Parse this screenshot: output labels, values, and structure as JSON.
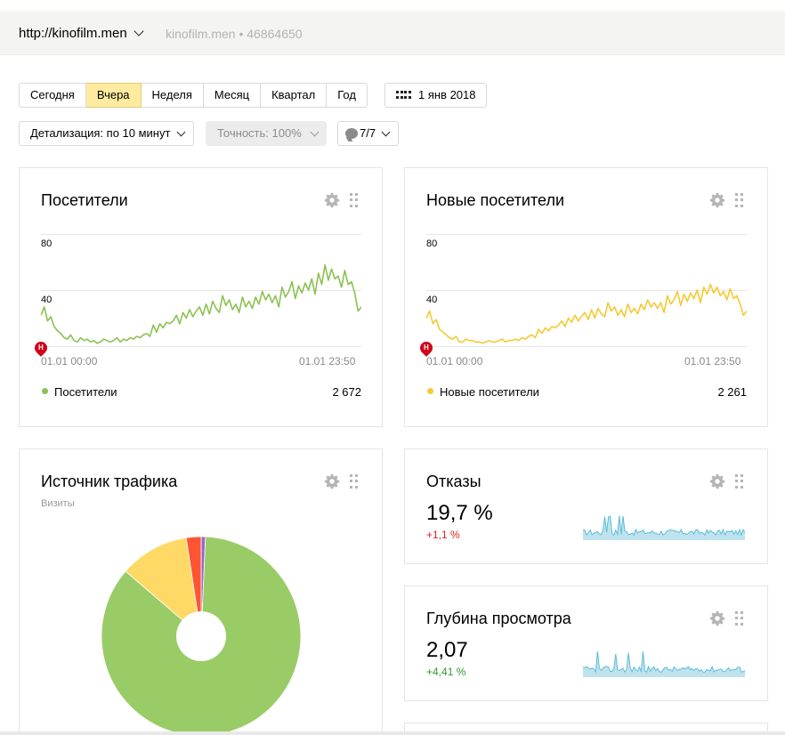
{
  "header": {
    "site_name": "http://kinofilm.men",
    "site_meta": "kinofilm.men • 46864650"
  },
  "period_tabs": [
    {
      "label": "Сегодня",
      "active": false
    },
    {
      "label": "Вчера",
      "active": true
    },
    {
      "label": "Неделя",
      "active": false
    },
    {
      "label": "Месяц",
      "active": false
    },
    {
      "label": "Квартал",
      "active": false
    },
    {
      "label": "Год",
      "active": false
    }
  ],
  "date_picker": {
    "label": "1 янв 2018",
    "icon": "calendar-icon"
  },
  "filters": {
    "detail": "Детализация: по 10 минут",
    "accuracy": "Точность: 100%",
    "segments": "7/7"
  },
  "colors": {
    "green": "#8cc152",
    "yellow": "#f5c933",
    "blue": "#5bbcd8",
    "red_delta": "#e0221d",
    "green_delta": "#2f9a2f",
    "pie_green": "#99cc66",
    "pie_yellow": "#ffd966",
    "pie_red": "#ff5533",
    "pie_purple": "#9966cc"
  },
  "visitors": {
    "title": "Посетители",
    "y_top": "80",
    "y_mid": "40",
    "start_time": "01.01 00:00",
    "end_time": "01.01 23:50",
    "legend_label": "Посетители",
    "legend_value": "2 672",
    "badge": "Н"
  },
  "new_visitors": {
    "title": "Новые посетители",
    "y_top": "80",
    "y_mid": "40",
    "start_time": "01.01 00:00",
    "end_time": "01.01 23:50",
    "legend_label": "Новые посетители",
    "legend_value": "2 261",
    "badge": "Н"
  },
  "traffic": {
    "title": "Источник трафика",
    "subtitle": "Визиты"
  },
  "bounce": {
    "title": "Отказы",
    "value": "19,7 %",
    "delta": "+1,1 %"
  },
  "depth": {
    "title": "Глубина просмотра",
    "value": "2,07",
    "delta": "+4,41 %"
  },
  "chart_data": [
    {
      "type": "line",
      "title": "Посетители",
      "x_start": "01.01 00:00",
      "x_end": "01.01 23:50",
      "ylim": [
        0,
        80
      ],
      "series": [
        {
          "name": "Посетители",
          "values": [
            22,
            28,
            18,
            21,
            14,
            11,
            9,
            6,
            5,
            8,
            4,
            3,
            6,
            4,
            5,
            3,
            4,
            2,
            3,
            5,
            4,
            3,
            4,
            6,
            3,
            5,
            4,
            6,
            5,
            7,
            6,
            8,
            9,
            7,
            15,
            10,
            16,
            13,
            17,
            16,
            18,
            22,
            16,
            24,
            20,
            26,
            21,
            25,
            28,
            22,
            30,
            23,
            32,
            27,
            24,
            36,
            29,
            33,
            26,
            30,
            24,
            35,
            28,
            32,
            27,
            35,
            30,
            39,
            33,
            37,
            31,
            36,
            28,
            42,
            35,
            39,
            46,
            34,
            43,
            38,
            45,
            40,
            48,
            37,
            52,
            44,
            58,
            47,
            55,
            48,
            50,
            42,
            54,
            44,
            46,
            38,
            25,
            28
          ]
        }
      ]
    },
    {
      "type": "line",
      "title": "Новые посетители",
      "x_start": "01.01 00:00",
      "x_end": "01.01 23:50",
      "ylim": [
        0,
        80
      ],
      "series": [
        {
          "name": "Новые посетители",
          "values": [
            20,
            25,
            16,
            19,
            12,
            10,
            8,
            6,
            5,
            7,
            3,
            3,
            5,
            4,
            4,
            3,
            3,
            2,
            3,
            4,
            3,
            3,
            4,
            5,
            3,
            4,
            4,
            5,
            4,
            6,
            5,
            7,
            8,
            6,
            12,
            9,
            13,
            11,
            14,
            13,
            15,
            18,
            14,
            20,
            17,
            22,
            18,
            21,
            24,
            19,
            26,
            20,
            27,
            23,
            21,
            31,
            25,
            28,
            22,
            26,
            21,
            30,
            24,
            27,
            23,
            30,
            26,
            33,
            28,
            31,
            27,
            31,
            24,
            36,
            30,
            33,
            39,
            29,
            37,
            32,
            38,
            34,
            40,
            31,
            42,
            37,
            44,
            38,
            42,
            36,
            39,
            33,
            41,
            34,
            36,
            30,
            22,
            25
          ]
        }
      ]
    },
    {
      "type": "pie",
      "title": "Источник трафика",
      "subtitle": "Визиты",
      "slices": [
        {
          "label": "green",
          "value": 85.6
        },
        {
          "label": "yellow",
          "value": 11.3
        },
        {
          "label": "red",
          "value": 2.4
        },
        {
          "label": "purple",
          "value": 0.7
        }
      ]
    }
  ]
}
